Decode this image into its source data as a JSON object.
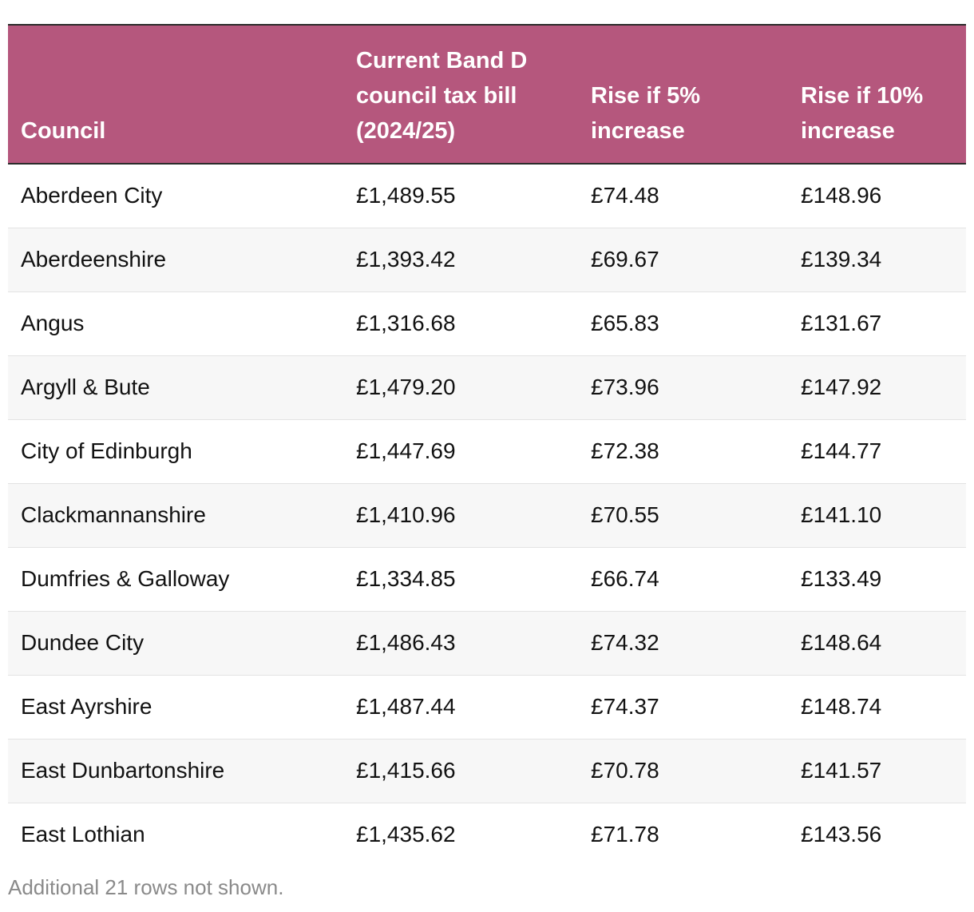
{
  "table": {
    "header_color": "#b5577d",
    "columns": [
      {
        "lines": [
          "Council"
        ]
      },
      {
        "lines": [
          "Current Band D",
          "council tax bill",
          "(2024/25)"
        ]
      },
      {
        "lines": [
          "Rise if 5%",
          "increase"
        ]
      },
      {
        "lines": [
          "Rise if 10%",
          "increase"
        ]
      }
    ],
    "rows": [
      [
        "Aberdeen City",
        "£1,489.55",
        "£74.48",
        "£148.96"
      ],
      [
        "Aberdeenshire",
        "£1,393.42",
        "£69.67",
        "£139.34"
      ],
      [
        "Angus",
        "£1,316.68",
        "£65.83",
        "£131.67"
      ],
      [
        "Argyll & Bute",
        "£1,479.20",
        "£73.96",
        "£147.92"
      ],
      [
        "City of Edinburgh",
        "£1,447.69",
        "£72.38",
        "£144.77"
      ],
      [
        "Clackmannanshire",
        "£1,410.96",
        "£70.55",
        "£141.10"
      ],
      [
        "Dumfries & Galloway",
        "£1,334.85",
        "£66.74",
        "£133.49"
      ],
      [
        "Dundee City",
        "£1,486.43",
        "£74.32",
        "£148.64"
      ],
      [
        "East Ayrshire",
        "£1,487.44",
        "£74.37",
        "£148.74"
      ],
      [
        "East Dunbartonshire",
        "£1,415.66",
        "£70.78",
        "£141.57"
      ],
      [
        "East Lothian",
        "£1,435.62",
        "£71.78",
        "£143.56"
      ]
    ]
  },
  "footer": {
    "note": "Additional 21 rows not shown."
  }
}
